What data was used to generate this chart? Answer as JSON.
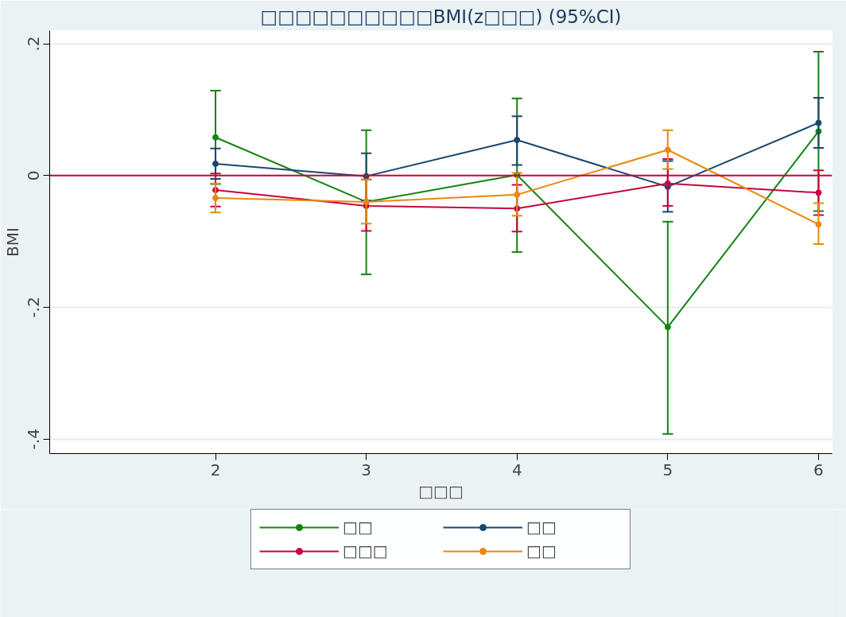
{
  "chart_data": {
    "type": "line",
    "title": "□□□□□□□□□□BMI(z□□□) (95%CI)",
    "xlabel": "□□□",
    "ylabel": "BMI",
    "x": [
      2,
      3,
      4,
      5,
      6
    ],
    "xlim": [
      0.9,
      6.09
    ],
    "xticks": [
      2,
      3,
      4,
      5,
      6
    ],
    "ylim": [
      -0.422,
      0.22
    ],
    "yticks": [
      {
        "value": 0.2,
        "label": ".2"
      },
      0,
      {
        "value": -0.2,
        "label": "-.2"
      },
      {
        "value": -0.4,
        "label": "-.4"
      }
    ],
    "grid": "y",
    "legend": "bottom",
    "marker": "circle",
    "line_style": "solid",
    "ref_lines": [
      {
        "axis": "y",
        "value": 0,
        "color": "#c7053f"
      }
    ],
    "series": [
      {
        "name": "□□",
        "color": "#128312",
        "values": [
          0.058,
          -0.04,
          0.001,
          -0.23,
          0.067
        ],
        "errors": [
          [
            -0.013,
            0.129
          ],
          [
            -0.15,
            0.069
          ],
          [
            -0.116,
            0.117
          ],
          [
            -0.392,
            -0.07
          ],
          [
            -0.054,
            0.188
          ]
        ]
      },
      {
        "name": "□□",
        "color": "#1a476f",
        "values": [
          0.018,
          -0.001,
          0.054,
          -0.017,
          0.08
        ],
        "errors": [
          [
            -0.005,
            0.041
          ],
          [
            -0.038,
            0.034
          ],
          [
            0.016,
            0.09
          ],
          [
            -0.055,
            0.022
          ],
          [
            0.042,
            0.118
          ]
        ]
      },
      {
        "name": "□□□",
        "color": "#c7053f",
        "values": [
          -0.022,
          -0.046,
          -0.05,
          -0.012,
          -0.026
        ],
        "errors": [
          [
            -0.047,
            0.003
          ],
          [
            -0.084,
            -0.006
          ],
          [
            -0.085,
            -0.014
          ],
          [
            -0.046,
            0.025
          ],
          [
            -0.06,
            0.008
          ]
        ]
      },
      {
        "name": "□□",
        "color": "#e8890c",
        "values": [
          -0.034,
          -0.04,
          -0.029,
          0.039,
          -0.074
        ],
        "errors": [
          [
            -0.056,
            -0.012
          ],
          [
            -0.073,
            -0.006
          ],
          [
            -0.061,
            0.004
          ],
          [
            0.01,
            0.069
          ],
          [
            -0.104,
            -0.042
          ]
        ]
      }
    ]
  }
}
